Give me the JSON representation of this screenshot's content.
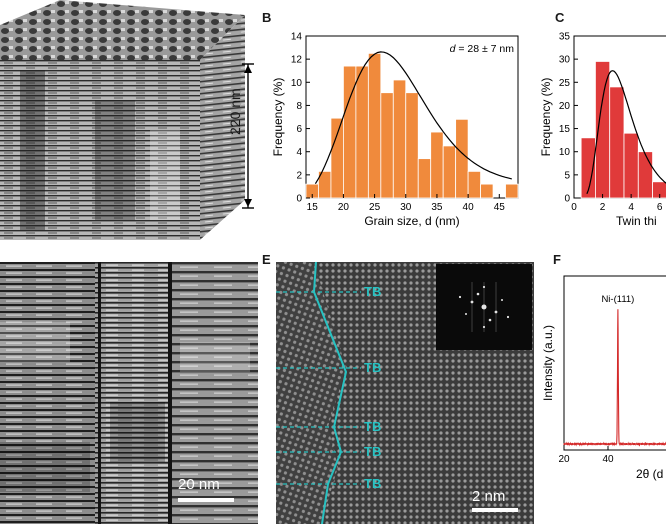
{
  "panels": {
    "a": {
      "scale_label": "220 nm"
    },
    "b": {
      "letter": "B",
      "annotation_prefix": "d",
      "annotation_rest": " = 28 ± 7 nm",
      "chart_data": {
        "type": "bar",
        "title": "",
        "xlabel": "Grain size, d (nm)",
        "ylabel": "Frequency (%)",
        "x": [
          15,
          17,
          19,
          21,
          23,
          25,
          27,
          29,
          31,
          33,
          35,
          37,
          39,
          41,
          43,
          47
        ],
        "values": [
          1.2,
          2.3,
          6.9,
          11.4,
          11.4,
          12.5,
          9.1,
          10.2,
          9.1,
          3.4,
          5.7,
          4.5,
          6.8,
          2.3,
          1.2,
          1.2
        ],
        "fit": "lognormal",
        "xlim": [
          14,
          48
        ],
        "ylim": [
          0,
          14
        ],
        "xticks": [
          "15",
          "20",
          "25",
          "30",
          "35",
          "40",
          "45"
        ],
        "yticks": [
          "0",
          "2",
          "4",
          "6",
          "8",
          "10",
          "12",
          "14"
        ]
      }
    },
    "c": {
      "letter": "C",
      "chart_data": {
        "type": "bar",
        "title": "",
        "xlabel": "Twin thi",
        "ylabel": "Frequency (%)",
        "x": [
          1,
          2,
          3,
          4,
          5,
          6
        ],
        "values": [
          13,
          29.5,
          24,
          14,
          10,
          3.5
        ],
        "fit": "lognormal",
        "xlim": [
          0,
          7
        ],
        "ylim": [
          0,
          35
        ],
        "xticks": [
          "0",
          "2",
          "4",
          "6"
        ],
        "yticks": [
          "0",
          "5",
          "10",
          "15",
          "20",
          "25",
          "30",
          "35"
        ]
      }
    },
    "d": {
      "scale_label": "20 nm"
    },
    "e": {
      "letter": "E",
      "boundary_labels": [
        "TB",
        "TB",
        "TB",
        "TB",
        "TB"
      ],
      "scale_label": "2 nm"
    },
    "f": {
      "letter": "F",
      "chart_data": {
        "type": "line",
        "title": "",
        "xlabel": "2θ (d",
        "ylabel": "Intensity (a.u.)",
        "peak_label": "Ni-(111)",
        "peak_position": 44.5,
        "xlim": [
          20,
          70
        ],
        "xticks": [
          "20",
          "40"
        ]
      }
    }
  }
}
